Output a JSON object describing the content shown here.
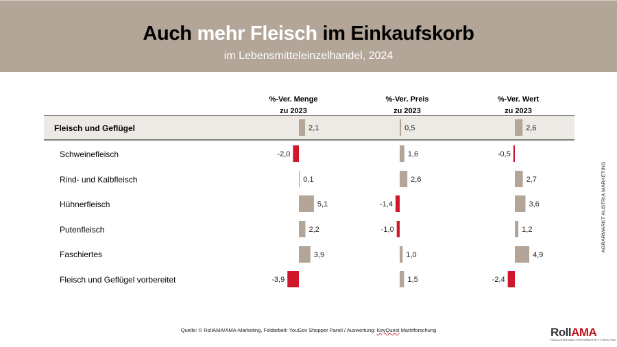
{
  "header": {
    "title_parts": [
      "Auch ",
      "mehr Fleisch",
      " im Einkaufskorb"
    ],
    "subtitle": "im Lebensmitteleinzelhandel, 2024"
  },
  "columns": [
    {
      "line1": "%-Ver. Menge",
      "line2": "zu 2023"
    },
    {
      "line1": "%-Ver. Preis",
      "line2": "zu 2023"
    },
    {
      "line1": "%-Ver. Wert",
      "line2": "zu 2023"
    }
  ],
  "colors": {
    "positive": "#b3a598",
    "negative": "#d0162b",
    "header_bg": "#b3a598",
    "total_row_bg": "#ede9e5"
  },
  "side_label": "AGRARMARKT AUSTRIA MARKETING",
  "source": {
    "text": "Quelle: © RollAMA/AMA-Marketing, Feldarbeit: YouGov Shopper Panel / Auswertung: ",
    "highlight": "KeyQuest",
    "tail": " Marktforschung"
  },
  "logo": {
    "part1": "Roll",
    "part2": "AMA",
    "tagline": "ROLLIERENDE AGRARMARKT-ANALYSE"
  },
  "chart_data": {
    "type": "bar",
    "orientation": "horizontal",
    "title": "Auch mehr Fleisch im Einkaufskorb",
    "subtitle": "im Lebensmitteleinzelhandel, 2024",
    "categories": [
      "Fleisch und Geflügel",
      "Schweinefleisch",
      "Rind- und Kalbfleisch",
      "Hühnerfleisch",
      "Putenfleisch",
      "Faschiertes",
      "Fleisch und Geflügel vorbereitet"
    ],
    "series": [
      {
        "name": "%-Ver. Menge zu 2023",
        "values": [
          2.1,
          -2.0,
          0.1,
          5.1,
          2.2,
          3.9,
          -3.9
        ],
        "labels": [
          "2,1",
          "-2,0",
          "0,1",
          "5,1",
          "2,2",
          "3,9",
          "-3,9"
        ]
      },
      {
        "name": "%-Ver. Preis zu 2023",
        "values": [
          0.5,
          1.6,
          2.6,
          -1.4,
          -1.0,
          1.0,
          1.5
        ],
        "labels": [
          "0,5",
          "1,6",
          "2,6",
          "-1,4",
          "-1,0",
          "1,0",
          "1,5"
        ]
      },
      {
        "name": "%-Ver. Wert zu 2023",
        "values": [
          2.6,
          -0.5,
          2.7,
          3.6,
          1.2,
          4.9,
          -2.4
        ],
        "labels": [
          "2,6",
          "-0,5",
          "2,7",
          "3,6",
          "1,2",
          "4,9",
          "-2,4"
        ]
      }
    ],
    "xlabel": "",
    "ylabel": "",
    "grid": false,
    "legend": "none"
  }
}
